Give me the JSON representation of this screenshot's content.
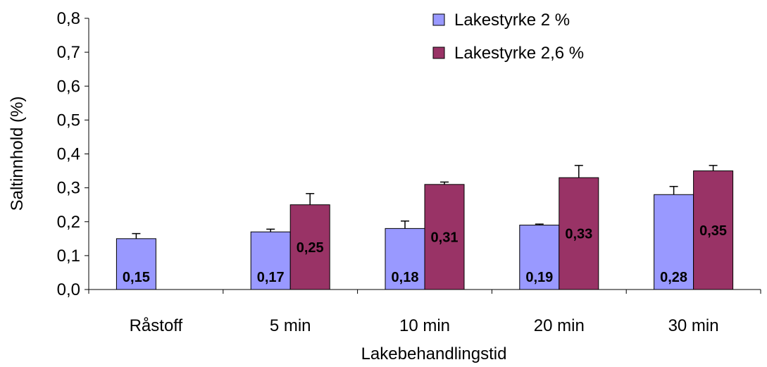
{
  "chart_data": {
    "type": "bar",
    "categories": [
      "Råstoff",
      "5 min",
      "10 min",
      "20 min",
      "30 min"
    ],
    "series": [
      {
        "name": "Lakestyrke 2 %",
        "color": "#9999ff",
        "values": [
          0.15,
          0.17,
          0.18,
          0.19,
          0.28
        ],
        "value_labels": [
          "0,15",
          "0,17",
          "0,18",
          "0,19",
          "0,28"
        ],
        "error": [
          0.015,
          0.008,
          0.022,
          0.003,
          0.024
        ]
      },
      {
        "name": "Lakestyrke 2,6 %",
        "color": "#993366",
        "values": [
          null,
          0.25,
          0.31,
          0.33,
          0.35
        ],
        "value_labels": [
          "",
          "0,25",
          "0,31",
          "0,33",
          "0,35"
        ],
        "error": [
          null,
          0.033,
          0.007,
          0.036,
          0.016
        ]
      }
    ],
    "ylim": [
      0,
      0.8
    ],
    "yticks": [
      "0,0",
      "0,1",
      "0,2",
      "0,3",
      "0,4",
      "0,5",
      "0,6",
      "0,7",
      "0,8"
    ],
    "xlabel": "Lakebehandlingstid",
    "ylabel": "Saltinnhold (%)",
    "grid": false,
    "legend_position": "top-right"
  }
}
